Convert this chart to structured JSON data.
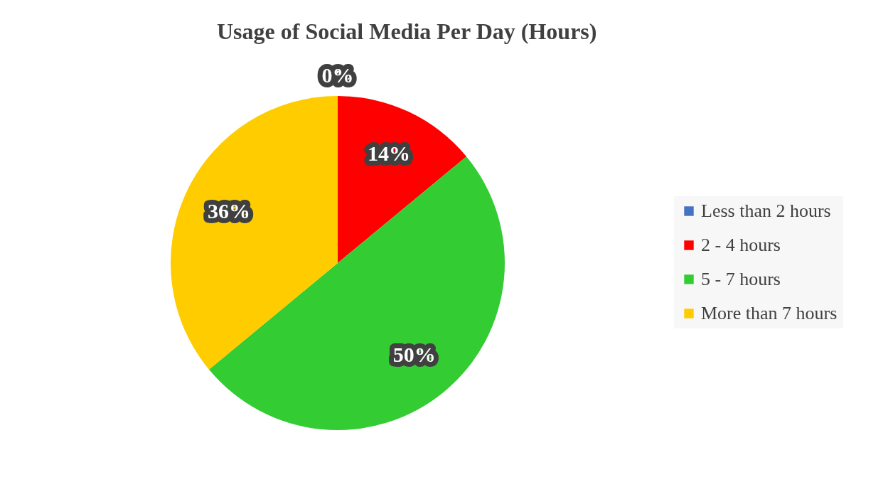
{
  "chart_data": {
    "type": "pie",
    "title": "Usage of Social Media Per Day (Hours)",
    "categories": [
      "Less than 2 hours",
      "2 - 4 hours",
      "5 - 7 hours",
      "More than 7 hours"
    ],
    "values": [
      0,
      14,
      50,
      36
    ],
    "colors": [
      "#4472c4",
      "#ff0000",
      "#33cc33",
      "#ffcc00"
    ],
    "value_labels": [
      "0%",
      "14%",
      "50%",
      "36%"
    ],
    "legend": "right"
  }
}
